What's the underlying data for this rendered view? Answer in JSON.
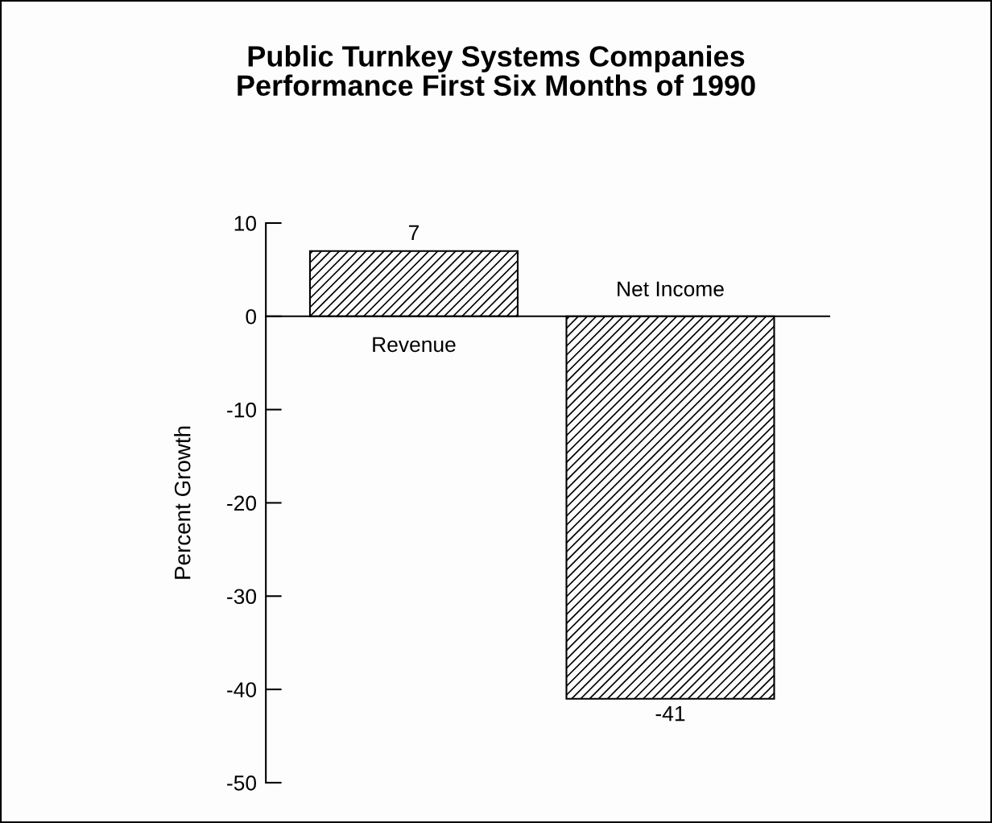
{
  "chart_data": {
    "type": "bar",
    "title": "Public Turnkey Systems Companies\nPerformance First Six Months of 1990",
    "ylabel": "Percent Growth",
    "categories": [
      "Revenue",
      "Net Income"
    ],
    "values": [
      7,
      -41
    ],
    "color": "#000000",
    "data_labels": true,
    "ylim": [
      -50,
      10
    ],
    "yticks": [
      -50,
      -40,
      -30,
      -20,
      -10,
      0,
      10
    ],
    "legend": false
  }
}
